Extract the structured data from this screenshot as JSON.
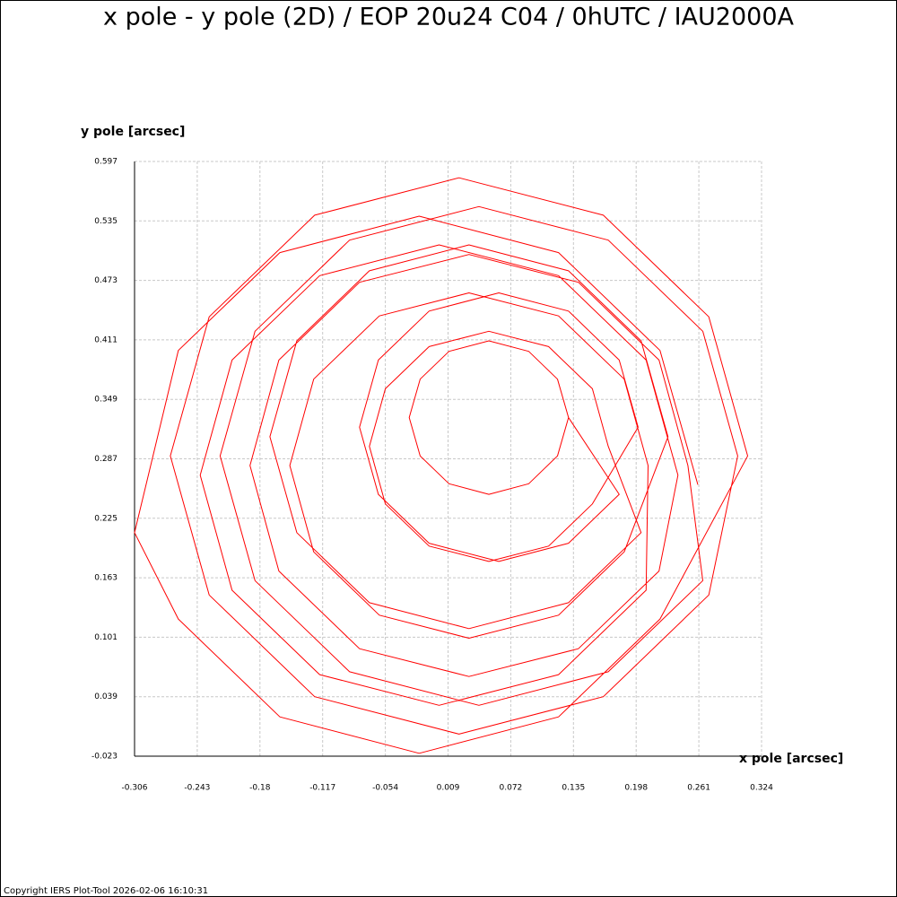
{
  "chart_data": {
    "type": "line",
    "title": "x pole - y pole (2D) / EOP 20u24 C04 / 0hUTC / IAU2000A",
    "x_label": "x pole [arcsec]",
    "y_label": "y pole [arcsec]",
    "footer": "Copyright IERS Plot-Tool 2026-02-06 16:10:31",
    "xlim": [
      -0.306,
      0.324
    ],
    "ylim": [
      -0.023,
      0.597
    ],
    "xticks": [
      -0.306,
      -0.243,
      -0.18,
      -0.117,
      -0.054,
      0.009,
      0.072,
      0.135,
      0.198,
      0.261,
      0.324
    ],
    "yticks": [
      -0.023,
      0.039,
      0.101,
      0.163,
      0.225,
      0.287,
      0.349,
      0.411,
      0.473,
      0.535,
      0.597
    ],
    "grid": true,
    "series": [
      {
        "color": "#ff0000",
        "x": [
          0.26,
          0.222,
          0.12,
          -0.02,
          -0.16,
          -0.262,
          -0.306,
          -0.262,
          -0.16,
          -0.02,
          0.12,
          0.222,
          0.31,
          0.271,
          0.165,
          0.02,
          -0.125,
          -0.231,
          -0.27,
          -0.231,
          -0.125,
          0.02,
          0.165,
          0.271,
          0.3,
          0.265,
          0.17,
          0.04,
          -0.09,
          -0.185,
          -0.22,
          -0.185,
          -0.09,
          0.04,
          0.17,
          0.265,
          0.25,
          0.221,
          0.14,
          0.03,
          -0.08,
          -0.161,
          -0.19,
          -0.161,
          -0.08,
          0.03,
          0.14,
          0.221,
          0.24,
          0.208,
          0.12,
          0,
          -0.12,
          -0.208,
          -0.24,
          -0.208,
          -0.12,
          0,
          0.12,
          0.208,
          0.21,
          0.186,
          0.12,
          0.03,
          -0.06,
          -0.126,
          -0.15,
          -0.126,
          -0.06,
          0.03,
          0.12,
          0.186,
          0.23,
          0.203,
          0.13,
          0.03,
          -0.07,
          -0.143,
          -0.17,
          -0.143,
          -0.07,
          0.03,
          0.13,
          0.203,
          0.17,
          0.154,
          0.11,
          0.05,
          -0.01,
          -0.054,
          -0.07,
          -0.054,
          -0.01,
          0.05,
          0.11,
          0.154,
          0.2,
          0.181,
          0.13,
          0.06,
          -0.01,
          -0.061,
          -0.08,
          -0.061,
          -0.01,
          0.06,
          0.13,
          0.181,
          0.13,
          0.119,
          0.09,
          0.05,
          0.01,
          -0.019,
          -0.03,
          -0.019,
          0.01,
          0.05,
          0.09,
          0.119,
          0.13
        ],
        "values": [
          0.26,
          0.4,
          0.502,
          0.54,
          0.502,
          0.4,
          0.21,
          0.12,
          0.018,
          -0.02,
          0.018,
          0.12,
          0.29,
          0.435,
          0.541,
          0.58,
          0.541,
          0.435,
          0.29,
          0.145,
          0.039,
          0,
          0.039,
          0.145,
          0.29,
          0.42,
          0.515,
          0.55,
          0.515,
          0.42,
          0.29,
          0.16,
          0.065,
          0.03,
          0.065,
          0.16,
          0.28,
          0.39,
          0.471,
          0.5,
          0.471,
          0.39,
          0.28,
          0.17,
          0.089,
          0.06,
          0.089,
          0.17,
          0.27,
          0.39,
          0.478,
          0.51,
          0.478,
          0.39,
          0.27,
          0.15,
          0.062,
          0.03,
          0.062,
          0.15,
          0.28,
          0.37,
          0.436,
          0.46,
          0.436,
          0.37,
          0.28,
          0.19,
          0.124,
          0.1,
          0.124,
          0.19,
          0.31,
          0.41,
          0.483,
          0.51,
          0.483,
          0.41,
          0.31,
          0.21,
          0.137,
          0.11,
          0.137,
          0.21,
          0.3,
          0.36,
          0.404,
          0.42,
          0.404,
          0.36,
          0.3,
          0.24,
          0.196,
          0.18,
          0.196,
          0.24,
          0.32,
          0.39,
          0.441,
          0.46,
          0.441,
          0.39,
          0.32,
          0.25,
          0.199,
          0.18,
          0.199,
          0.25,
          0.33,
          0.37,
          0.399,
          0.41,
          0.399,
          0.37,
          0.33,
          0.29,
          0.261,
          0.25,
          0.261,
          0.29,
          0.33
        ]
      }
    ]
  }
}
